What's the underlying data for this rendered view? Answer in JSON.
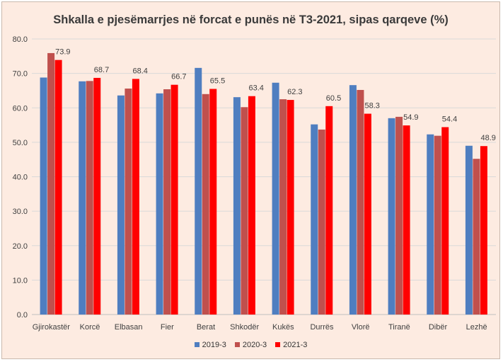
{
  "chart_data": {
    "type": "bar",
    "title": "Shkalla e pjesëmarrjes në forcat e punës në T3-2021, sipas qarqeve (%)",
    "categories": [
      "Gjirokastër",
      "Korcë",
      "Elbasan",
      "Fier",
      "Berat",
      "Shkodër",
      "Kukës",
      "Durrës",
      "Vlorë",
      "Tiranë",
      "Dibër",
      "Lezhë"
    ],
    "series": [
      {
        "name": "2019-3",
        "color": "#4f7ec0",
        "values": [
          68.8,
          67.7,
          63.6,
          64.2,
          71.6,
          63.1,
          67.3,
          55.2,
          66.6,
          57.0,
          52.3,
          49.0
        ]
      },
      {
        "name": "2020-3",
        "color": "#c0504d",
        "values": [
          75.9,
          67.8,
          65.6,
          65.4,
          64.0,
          60.2,
          62.5,
          53.7,
          65.2,
          57.4,
          51.9,
          45.2
        ]
      },
      {
        "name": "2021-3",
        "color": "#ff0000",
        "values": [
          73.9,
          68.7,
          68.4,
          66.7,
          65.5,
          63.4,
          62.3,
          60.5,
          58.3,
          54.9,
          54.4,
          48.9
        ]
      }
    ],
    "data_labels": [
      "73.9",
      "68.7",
      "68.4",
      "66.7",
      "65.5",
      "63.4",
      "62.3",
      "60.5",
      "58.3",
      "54.9",
      "54.4",
      "48.9"
    ],
    "y_ticks": [
      "0.0",
      "10.0",
      "20.0",
      "30.0",
      "40.0",
      "50.0",
      "60.0",
      "70.0",
      "80.0"
    ],
    "ylim": [
      0,
      80
    ],
    "grid": true,
    "legend_position": "bottom"
  },
  "colors": {
    "background": "#fdebe1",
    "gridline": "#d9d9d9",
    "axis": "#bfbfbf"
  }
}
